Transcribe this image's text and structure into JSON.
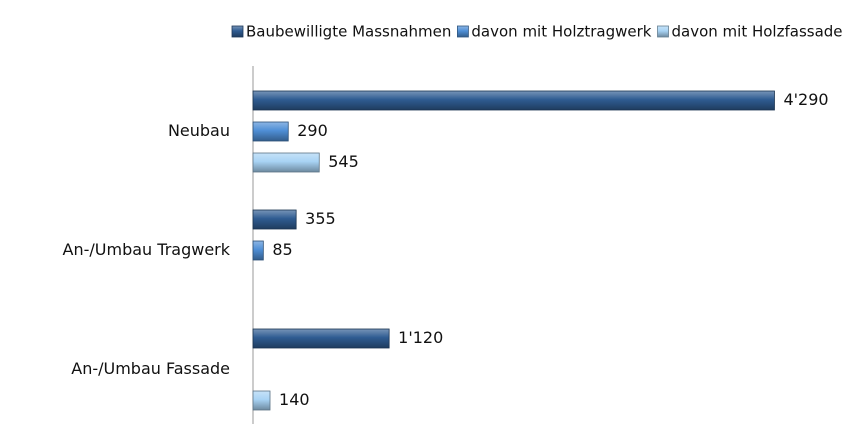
{
  "chart_data": {
    "type": "bar",
    "orientation": "horizontal",
    "categories": [
      "Neubau",
      "An-/Umbau Tragwerk",
      "An-/Umbau Fassade"
    ],
    "series": [
      {
        "name": "Baubewilligte Massnahmen",
        "color": "#2f5c92",
        "values": [
          4290,
          355,
          1120
        ],
        "value_labels": [
          "4'290",
          "355",
          "1'120"
        ]
      },
      {
        "name": "davon mit Holztragwerk",
        "color": "#4f8fd6",
        "values": [
          290,
          85,
          null
        ],
        "value_labels": [
          "290",
          "85",
          null
        ]
      },
      {
        "name": "davon mit Holzfassade",
        "color": "#a8d3f4",
        "values": [
          545,
          null,
          140
        ],
        "value_labels": [
          "545",
          null,
          "140"
        ]
      }
    ],
    "xlim": [
      0,
      4500
    ],
    "legend": "top"
  }
}
